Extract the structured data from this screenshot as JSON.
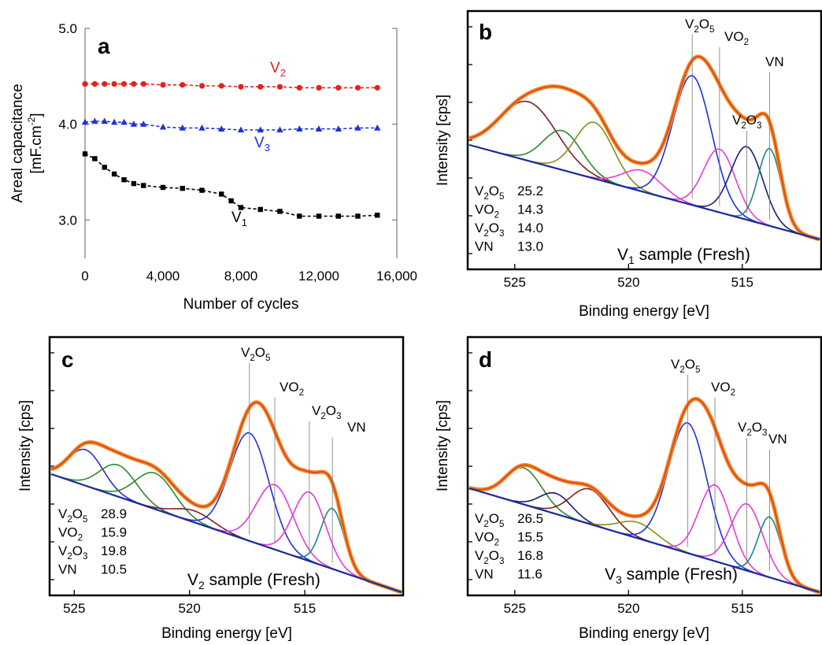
{
  "colors": {
    "V1": "#000000",
    "V2": "#e8201c",
    "V3": "#1f30d8",
    "envelope_outer": "#f08a24",
    "envelope_inner": "#e2401a",
    "background_line": "#1a2a9e",
    "frame": "#000000"
  },
  "chart_data": [
    {
      "panel": "a",
      "type": "line",
      "xlabel": "Number of cycles",
      "ylabel_line1": "Areal capacitance",
      "ylabel_line2": "[mF.cm",
      "ylabel_sup": "-2",
      "ylabel_end": "]",
      "xlim": [
        0,
        16000
      ],
      "ylim": [
        2.6,
        5.0
      ],
      "xticks": [
        0,
        4000,
        8000,
        12000,
        16000
      ],
      "xtick_labels": [
        "0",
        "4,000",
        "8,000",
        "12,000",
        "16,000"
      ],
      "yticks": [
        3.0,
        4.0,
        5.0
      ],
      "ytick_labels": [
        "3.0",
        "4.0",
        "5.0"
      ],
      "grid": false,
      "series": [
        {
          "name": "V2",
          "name_base": "V",
          "name_sub": "2",
          "color": "#e8201c",
          "marker": "circle",
          "x": [
            0,
            500,
            1000,
            1500,
            2000,
            2500,
            3000,
            4000,
            5000,
            6000,
            7000,
            8000,
            9000,
            10000,
            11000,
            12000,
            13000,
            14000,
            15000
          ],
          "y": [
            4.42,
            4.42,
            4.42,
            4.42,
            4.42,
            4.42,
            4.42,
            4.41,
            4.41,
            4.4,
            4.4,
            4.39,
            4.39,
            4.39,
            4.38,
            4.38,
            4.38,
            4.38,
            4.38
          ]
        },
        {
          "name": "V3",
          "name_base": "V",
          "name_sub": "3",
          "color": "#1f30d8",
          "marker": "triangle",
          "x": [
            0,
            500,
            1000,
            1500,
            2000,
            2500,
            3000,
            4000,
            5000,
            6000,
            7000,
            8000,
            9000,
            10000,
            11000,
            12000,
            13000,
            14000,
            15000
          ],
          "y": [
            4.02,
            4.03,
            4.03,
            4.02,
            4.02,
            4.0,
            4.0,
            3.97,
            3.96,
            3.96,
            3.95,
            3.94,
            3.94,
            3.94,
            3.95,
            3.95,
            3.95,
            3.96,
            3.96
          ]
        },
        {
          "name": "V1",
          "name_base": "V",
          "name_sub": "1",
          "color": "#000000",
          "marker": "square",
          "x": [
            0,
            500,
            1000,
            1500,
            2000,
            2500,
            3000,
            4000,
            5000,
            6000,
            7000,
            7500,
            8000,
            9000,
            10000,
            11000,
            12000,
            13000,
            14000,
            15000
          ],
          "y": [
            3.69,
            3.64,
            3.55,
            3.48,
            3.42,
            3.38,
            3.36,
            3.34,
            3.33,
            3.31,
            3.27,
            3.2,
            3.13,
            3.11,
            3.09,
            3.04,
            3.04,
            3.04,
            3.04,
            3.05
          ]
        }
      ]
    },
    {
      "panel": "b",
      "type": "line",
      "xlabel": "Binding energy [eV]",
      "ylabel": "Intensity [cps]",
      "xlim": [
        527,
        511.6
      ],
      "reversed_x": true,
      "xticks": [
        525,
        520,
        515
      ],
      "xtick_labels": [
        "525",
        "520",
        "515"
      ],
      "sample_label_base": "V",
      "sample_label_sub": "1",
      "sample_label_rest": "  sample (Fresh)",
      "table": [
        {
          "base": "V",
          "sub1": "2",
          "mid": "O",
          "sub2": "5",
          "value": "25.2"
        },
        {
          "base": "VO",
          "sub1": "2",
          "mid": "",
          "sub2": "",
          "value": "14.3"
        },
        {
          "base": "V",
          "sub1": "2",
          "mid": "O",
          "sub2": "3",
          "value": "14.0"
        },
        {
          "base": "VN",
          "sub1": "",
          "mid": "",
          "sub2": "",
          "value": "13.0"
        }
      ],
      "peak_labels": [
        "V2O5",
        "VO2",
        "V2O3",
        "VN"
      ],
      "peaks": [
        {
          "center": 524.4,
          "height": 0.42,
          "sigma": 1.25,
          "color": "#7a1f1f"
        },
        {
          "center": 522.9,
          "height": 0.28,
          "sigma": 0.85,
          "color": "#2a8a2a"
        },
        {
          "center": 521.5,
          "height": 0.4,
          "sigma": 0.85,
          "color": "#8c8a18"
        },
        {
          "center": 519.4,
          "height": 0.15,
          "sigma": 0.85,
          "color": "#e83ad4"
        },
        {
          "center": 517.2,
          "height": 0.92,
          "sigma": 0.85,
          "color": "#1f30d8"
        },
        {
          "center": 516.0,
          "height": 0.45,
          "sigma": 0.7,
          "color": "#e83ad4"
        },
        {
          "center": 514.8,
          "height": 0.52,
          "sigma": 0.7,
          "color": "#1a1f6e"
        },
        {
          "center": 513.8,
          "height": 0.55,
          "sigma": 0.5,
          "color": "#1a8a7e"
        }
      ]
    },
    {
      "panel": "c",
      "type": "line",
      "xlabel": "Binding energy [eV]",
      "ylabel": "Intensity [cps]",
      "xlim": [
        526,
        510.8
      ],
      "reversed_x": true,
      "xticks": [
        525,
        520,
        515
      ],
      "xtick_labels": [
        "525",
        "520",
        "515"
      ],
      "sample_label_base": "V",
      "sample_label_sub": "2",
      "sample_label_rest": "  sample (Fresh)",
      "table": [
        {
          "base": "V",
          "sub1": "2",
          "mid": "O",
          "sub2": "5",
          "value": "28.9"
        },
        {
          "base": "VO",
          "sub1": "2",
          "mid": "",
          "sub2": "",
          "value": "15.9"
        },
        {
          "base": "V",
          "sub1": "2",
          "mid": "O",
          "sub2": "3",
          "value": "19.8"
        },
        {
          "base": "VN",
          "sub1": "",
          "mid": "",
          "sub2": "",
          "value": "10.5"
        }
      ],
      "peak_labels": [
        "V2O5",
        "VO2",
        "V2O3",
        "VN"
      ],
      "peaks": [
        {
          "center": 524.5,
          "height": 0.25,
          "sigma": 0.75,
          "color": "#1f30d8"
        },
        {
          "center": 523.1,
          "height": 0.22,
          "sigma": 0.8,
          "color": "#2a8a2a"
        },
        {
          "center": 521.5,
          "height": 0.25,
          "sigma": 0.85,
          "color": "#2a8a2a"
        },
        {
          "center": 519.8,
          "height": 0.08,
          "sigma": 0.85,
          "color": "#7a1f1f"
        },
        {
          "center": 517.4,
          "height": 0.75,
          "sigma": 0.85,
          "color": "#1f30d8"
        },
        {
          "center": 516.3,
          "height": 0.45,
          "sigma": 0.8,
          "color": "#e83ad4"
        },
        {
          "center": 514.8,
          "height": 0.48,
          "sigma": 0.7,
          "color": "#e83ad4"
        },
        {
          "center": 513.8,
          "height": 0.42,
          "sigma": 0.5,
          "color": "#1a8a7e"
        }
      ]
    },
    {
      "panel": "d",
      "type": "line",
      "xlabel": "Binding energy [eV]",
      "ylabel": "Intensity [cps]",
      "xlim": [
        527,
        511.6
      ],
      "reversed_x": true,
      "xticks": [
        525,
        520,
        515
      ],
      "xtick_labels": [
        "525",
        "520",
        "515"
      ],
      "sample_label_base": "V",
      "sample_label_sub": "3",
      "sample_label_rest": "  sample (Fresh)",
      "table": [
        {
          "base": "V",
          "sub1": "2",
          "mid": "O",
          "sub2": "5",
          "value": "26.5"
        },
        {
          "base": "VO",
          "sub1": "2",
          "mid": "",
          "sub2": "",
          "value": "15.5"
        },
        {
          "base": "V",
          "sub1": "2",
          "mid": "O",
          "sub2": "3",
          "value": "16.8"
        },
        {
          "base": "VN",
          "sub1": "",
          "mid": "",
          "sub2": "",
          "value": "11.6"
        }
      ],
      "peak_labels": [
        "V2O5",
        "VO2",
        "V2O3",
        "VN"
      ],
      "peaks": [
        {
          "center": 524.6,
          "height": 0.23,
          "sigma": 0.8,
          "color": "#2a8a2a"
        },
        {
          "center": 523.2,
          "height": 0.13,
          "sigma": 0.7,
          "color": "#1a1f6e"
        },
        {
          "center": 521.7,
          "height": 0.22,
          "sigma": 0.85,
          "color": "#7a1f1f"
        },
        {
          "center": 519.6,
          "height": 0.1,
          "sigma": 0.85,
          "color": "#8c8a18"
        },
        {
          "center": 517.4,
          "height": 0.82,
          "sigma": 0.85,
          "color": "#1f30d8"
        },
        {
          "center": 516.2,
          "height": 0.48,
          "sigma": 0.7,
          "color": "#e83ad4"
        },
        {
          "center": 514.8,
          "height": 0.42,
          "sigma": 0.7,
          "color": "#e83ad4"
        },
        {
          "center": 513.8,
          "height": 0.38,
          "sigma": 0.5,
          "color": "#1a8a7e"
        }
      ]
    }
  ]
}
